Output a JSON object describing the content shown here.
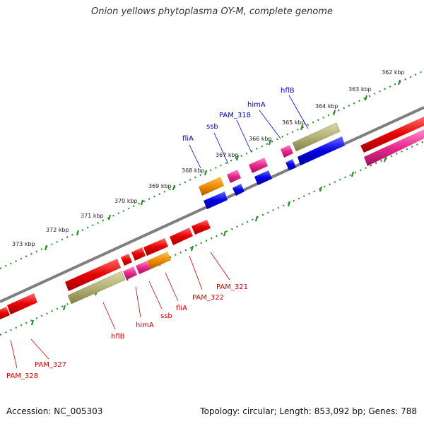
{
  "title": "Onion yellows phytoplasma OY-M, complete genome",
  "accession": "Accession: NC_005303",
  "summary": "Topology: circular; Length: 853,092 bp; Genes: 788",
  "colors": {
    "backbone": "#7f7f7f",
    "ruler_dots": "#2e8b2e",
    "red": "#e60000",
    "magenta": "#e8288c",
    "orange": "#f08c00",
    "blue": "#0000e6",
    "khaki": "#b4b078",
    "label_blue": "#0000cc",
    "label_red": "#cc0000"
  },
  "ticks": {
    "outer": [
      "362 kbp",
      "363 kbp",
      "364 kbp",
      "365 kbp",
      "366 kbp",
      "367 kbp",
      "368 kbp",
      "369 kbp",
      "370 kbp",
      "371 kbp",
      "372 kbp",
      "373 kbp"
    ]
  },
  "labels": {
    "forward": [
      "fliA",
      "ssb",
      "PAM_318",
      "himA",
      "hflB"
    ],
    "reverse": [
      "PAM_321",
      "PAM_322",
      "fliA",
      "ssb",
      "himA",
      "hflB",
      "PAM_327",
      "PAM_328"
    ]
  }
}
